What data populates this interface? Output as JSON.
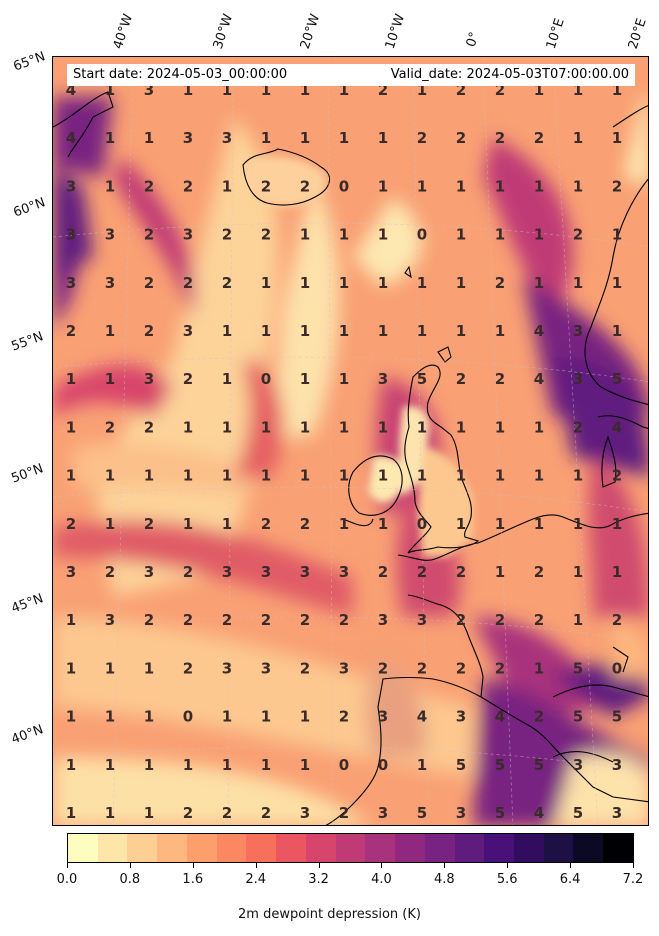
{
  "header": {
    "start_date": "Start date: 2024-05-03_00:00:00",
    "valid_date": "Valid_date: 2024-05-03T07:00:00.00"
  },
  "longitude_labels": [
    "40°W",
    "30°W",
    "20°W",
    "10°W",
    "0°",
    "10°E",
    "20°E"
  ],
  "latitude_labels": [
    "65°N",
    "60°N",
    "55°N",
    "50°N",
    "45°N",
    "40°N"
  ],
  "colorbar": {
    "label": "2m dewpoint depression (K)",
    "ticks": [
      "0.0",
      "0.8",
      "1.6",
      "2.4",
      "3.2",
      "4.0",
      "4.8",
      "5.6",
      "6.4",
      "7.2"
    ],
    "colormap": "magma_r",
    "range": [
      0.0,
      7.2
    ],
    "colors": [
      "#fcfdbf",
      "#fde6a8",
      "#fecf92",
      "#feb77e",
      "#fd9f6c",
      "#fb8861",
      "#f7705c",
      "#eb5760",
      "#d8456c",
      "#c03a76",
      "#a8327d",
      "#90287f",
      "#782281",
      "#601b7f",
      "#481078",
      "#320d5f",
      "#1c1044",
      "#0b0924",
      "#000004"
    ]
  },
  "grid_values": [
    [
      4,
      1,
      3,
      1,
      1,
      1,
      1,
      1,
      2,
      1,
      2,
      2,
      1,
      1,
      1
    ],
    [
      4,
      1,
      1,
      3,
      3,
      1,
      1,
      1,
      1,
      2,
      2,
      2,
      2,
      1,
      1
    ],
    [
      3,
      1,
      2,
      2,
      1,
      2,
      2,
      0,
      1,
      1,
      1,
      1,
      1,
      1,
      2
    ],
    [
      3,
      3,
      2,
      3,
      2,
      2,
      1,
      1,
      1,
      0,
      1,
      1,
      1,
      2,
      1
    ],
    [
      3,
      3,
      2,
      2,
      2,
      1,
      1,
      1,
      1,
      1,
      1,
      2,
      1,
      1,
      1
    ],
    [
      2,
      1,
      2,
      3,
      1,
      1,
      1,
      1,
      1,
      1,
      1,
      1,
      4,
      3,
      1
    ],
    [
      1,
      1,
      3,
      2,
      1,
      0,
      1,
      1,
      3,
      5,
      2,
      2,
      4,
      3,
      5
    ],
    [
      1,
      2,
      2,
      1,
      1,
      1,
      1,
      1,
      1,
      1,
      1,
      1,
      1,
      2,
      4
    ],
    [
      1,
      1,
      1,
      1,
      1,
      1,
      1,
      1,
      1,
      1,
      1,
      1,
      1,
      1,
      2
    ],
    [
      2,
      1,
      2,
      1,
      1,
      2,
      2,
      1,
      1,
      0,
      1,
      1,
      1,
      1,
      1
    ],
    [
      3,
      2,
      3,
      2,
      3,
      3,
      3,
      3,
      2,
      2,
      2,
      1,
      2,
      1,
      1
    ],
    [
      1,
      3,
      2,
      2,
      2,
      2,
      2,
      2,
      3,
      3,
      2,
      2,
      2,
      1,
      2
    ],
    [
      1,
      1,
      1,
      2,
      3,
      3,
      2,
      3,
      2,
      2,
      2,
      2,
      1,
      5,
      0
    ],
    [
      1,
      1,
      1,
      0,
      1,
      1,
      1,
      2,
      3,
      4,
      3,
      4,
      2,
      5,
      5
    ],
    [
      1,
      1,
      1,
      1,
      1,
      1,
      1,
      0,
      0,
      1,
      5,
      5,
      5,
      3,
      3
    ],
    [
      1,
      1,
      1,
      2,
      2,
      2,
      3,
      2,
      3,
      5,
      3,
      5,
      4,
      5,
      3
    ]
  ]
}
